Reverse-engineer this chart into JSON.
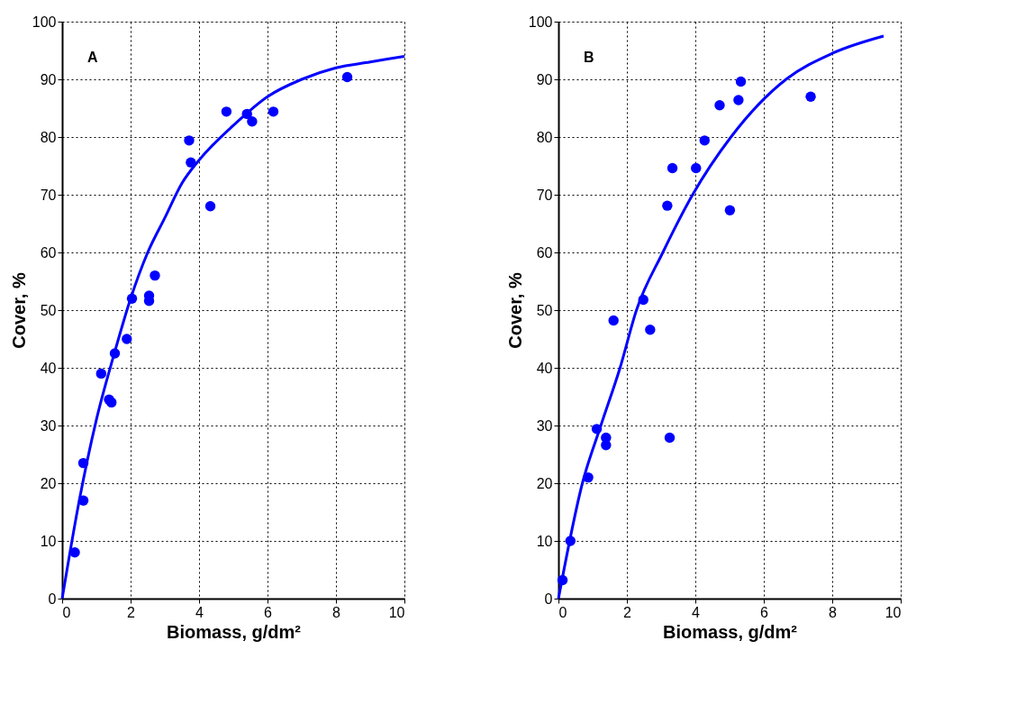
{
  "chart_data": [
    {
      "type": "scatter",
      "xlabel": "Biomass, g/dm²",
      "ylabel": "Cover, %",
      "annotations": [
        "A"
      ],
      "xlim": [
        0,
        10
      ],
      "ylim": [
        0,
        100
      ],
      "xticks": [
        0,
        2,
        4,
        6,
        8,
        10
      ],
      "yticks": [
        0,
        10,
        20,
        30,
        40,
        50,
        60,
        70,
        80,
        90,
        100
      ],
      "grid": true,
      "series": [
        {
          "marker": "circle",
          "color": "#0000ff",
          "x": [
            0.37,
            0.62,
            0.62,
            1.14,
            1.37,
            1.44,
            1.54,
            1.89,
            2.04,
            2.54,
            2.54,
            2.71,
            3.71,
            3.76,
            4.33,
            4.8,
            5.4,
            5.55,
            6.17,
            8.33
          ],
          "values": [
            8,
            17,
            23.5,
            39,
            34.5,
            34,
            42.5,
            45,
            52,
            52.5,
            51.6,
            56,
            79.4,
            75.6,
            68,
            84.4,
            84,
            82.7,
            84.4,
            90.4
          ]
        },
        {
          "type": "line",
          "color": "#0000ff",
          "line_style": "solid",
          "x": [
            0,
            0.5,
            1,
            1.5,
            2,
            2.5,
            3,
            3.5,
            4,
            5,
            6,
            7,
            8,
            9,
            10
          ],
          "values": [
            0,
            17,
            31,
            42,
            52,
            60,
            66,
            72,
            76,
            82,
            87,
            90,
            92,
            93,
            94
          ]
        }
      ]
    },
    {
      "type": "scatter",
      "xlabel": "Biomass, g/dm²",
      "ylabel": "Cover, %",
      "annotations": [
        "B"
      ],
      "xlim": [
        0,
        10
      ],
      "ylim": [
        0,
        100
      ],
      "xticks": [
        0,
        2,
        4,
        6,
        8,
        10
      ],
      "yticks": [
        0,
        10,
        20,
        30,
        40,
        50,
        60,
        70,
        80,
        90,
        100
      ],
      "grid": true,
      "series": [
        {
          "marker": "circle",
          "color": "#0000ff",
          "x": [
            0.12,
            0.35,
            0.87,
            1.12,
            1.39,
            1.39,
            1.61,
            2.48,
            2.68,
            3.18,
            3.25,
            3.33,
            4.02,
            4.27,
            4.71,
            5.26,
            5.33,
            5.01,
            7.37
          ],
          "values": [
            3.2,
            10,
            21,
            29.4,
            27.9,
            26.6,
            48.2,
            51.8,
            46.6,
            68.1,
            27.9,
            74.6,
            74.6,
            79.4,
            85.5,
            86.4,
            89.6,
            67.3,
            87
          ]
        },
        {
          "type": "line",
          "color": "#0000ff",
          "line_style": "solid",
          "x": [
            0,
            0.7,
            1.24,
            1.8,
            2.28,
            3.05,
            3.92,
            5.04,
            6.65,
            8,
            9.5
          ],
          "values": [
            0,
            20,
            30,
            40,
            50,
            60,
            70,
            80,
            90,
            94.5,
            97.5
          ]
        }
      ]
    }
  ]
}
